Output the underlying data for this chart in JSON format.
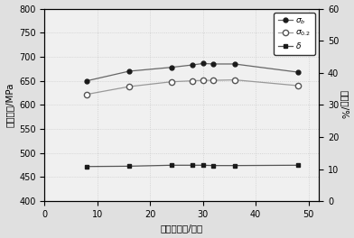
{
  "x": [
    8,
    16,
    24,
    28,
    30,
    32,
    36,
    48
  ],
  "sigma_b": [
    650,
    670,
    678,
    683,
    686,
    685,
    685,
    668
  ],
  "sigma_02": [
    622,
    638,
    648,
    650,
    651,
    651,
    652,
    640
  ],
  "delta": [
    10.8,
    10.9,
    11.2,
    11.2,
    11.2,
    11.1,
    11.1,
    11.2
  ],
  "xlim": [
    0,
    52
  ],
  "ylim_left": [
    400,
    800
  ],
  "ylim_right": [
    0,
    60
  ],
  "yticks_left": [
    400,
    450,
    500,
    550,
    600,
    650,
    700,
    750,
    800
  ],
  "yticks_right": [
    0,
    10,
    20,
    30,
    40,
    50,
    60
  ],
  "xticks": [
    0,
    10,
    20,
    30,
    40,
    50
  ],
  "xlabel": "再时效时间/小时",
  "ylabel_left": "抗拉强度/MPa",
  "ylabel_right": "延伸率/%",
  "line_color_sigma_b": "#666666",
  "line_color_sigma_02": "#999999",
  "line_color_delta": "#555555",
  "bg_color": "#f0f0f0",
  "fig_bg": "#e0e0e0",
  "grid_color": "#cccccc",
  "fontsize_tick": 7,
  "fontsize_label": 7.5,
  "fontsize_legend": 6.5
}
